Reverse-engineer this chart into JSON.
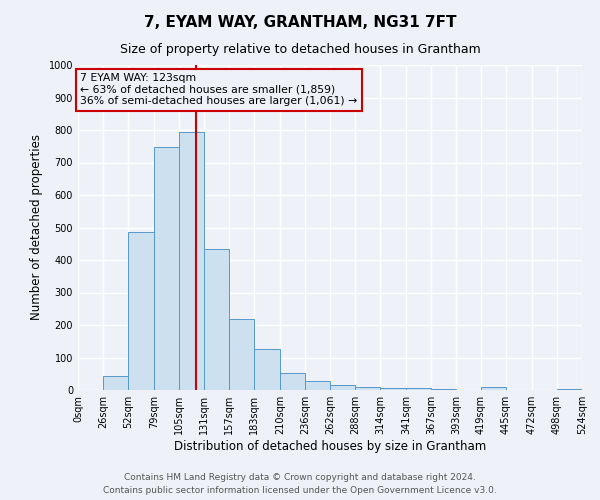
{
  "title": "7, EYAM WAY, GRANTHAM, NG31 7FT",
  "subtitle": "Size of property relative to detached houses in Grantham",
  "xlabel": "Distribution of detached houses by size in Grantham",
  "ylabel": "Number of detached properties",
  "bin_edges": [
    0,
    26,
    52,
    79,
    105,
    131,
    157,
    183,
    210,
    236,
    262,
    288,
    314,
    341,
    367,
    393,
    419,
    445,
    472,
    498,
    524
  ],
  "bin_counts": [
    0,
    42,
    485,
    748,
    795,
    435,
    220,
    125,
    52,
    28,
    15,
    10,
    5,
    5,
    2,
    0,
    8,
    0,
    0,
    2
  ],
  "property_value": 123,
  "bar_color": "#cce0f0",
  "bar_edge_color": "#5599cc",
  "vline_color": "#cc0000",
  "annotation_box_color": "#cc0000",
  "annotation_line1": "7 EYAM WAY: 123sqm",
  "annotation_line2": "← 63% of detached houses are smaller (1,859)",
  "annotation_line3": "36% of semi-detached houses are larger (1,061) →",
  "ylim": [
    0,
    1000
  ],
  "yticks": [
    0,
    100,
    200,
    300,
    400,
    500,
    600,
    700,
    800,
    900,
    1000
  ],
  "tick_labels": [
    "0sqm",
    "26sqm",
    "52sqm",
    "79sqm",
    "105sqm",
    "131sqm",
    "157sqm",
    "183sqm",
    "210sqm",
    "236sqm",
    "262sqm",
    "288sqm",
    "314sqm",
    "341sqm",
    "367sqm",
    "393sqm",
    "419sqm",
    "445sqm",
    "472sqm",
    "498sqm",
    "524sqm"
  ],
  "footer_line1": "Contains HM Land Registry data © Crown copyright and database right 2024.",
  "footer_line2": "Contains public sector information licensed under the Open Government Licence v3.0.",
  "background_color": "#eef2f8",
  "grid_color": "#ffffff",
  "title_fontsize": 11,
  "subtitle_fontsize": 9,
  "tick_fontsize": 7,
  "axis_label_fontsize": 8.5,
  "footer_fontsize": 6.5
}
